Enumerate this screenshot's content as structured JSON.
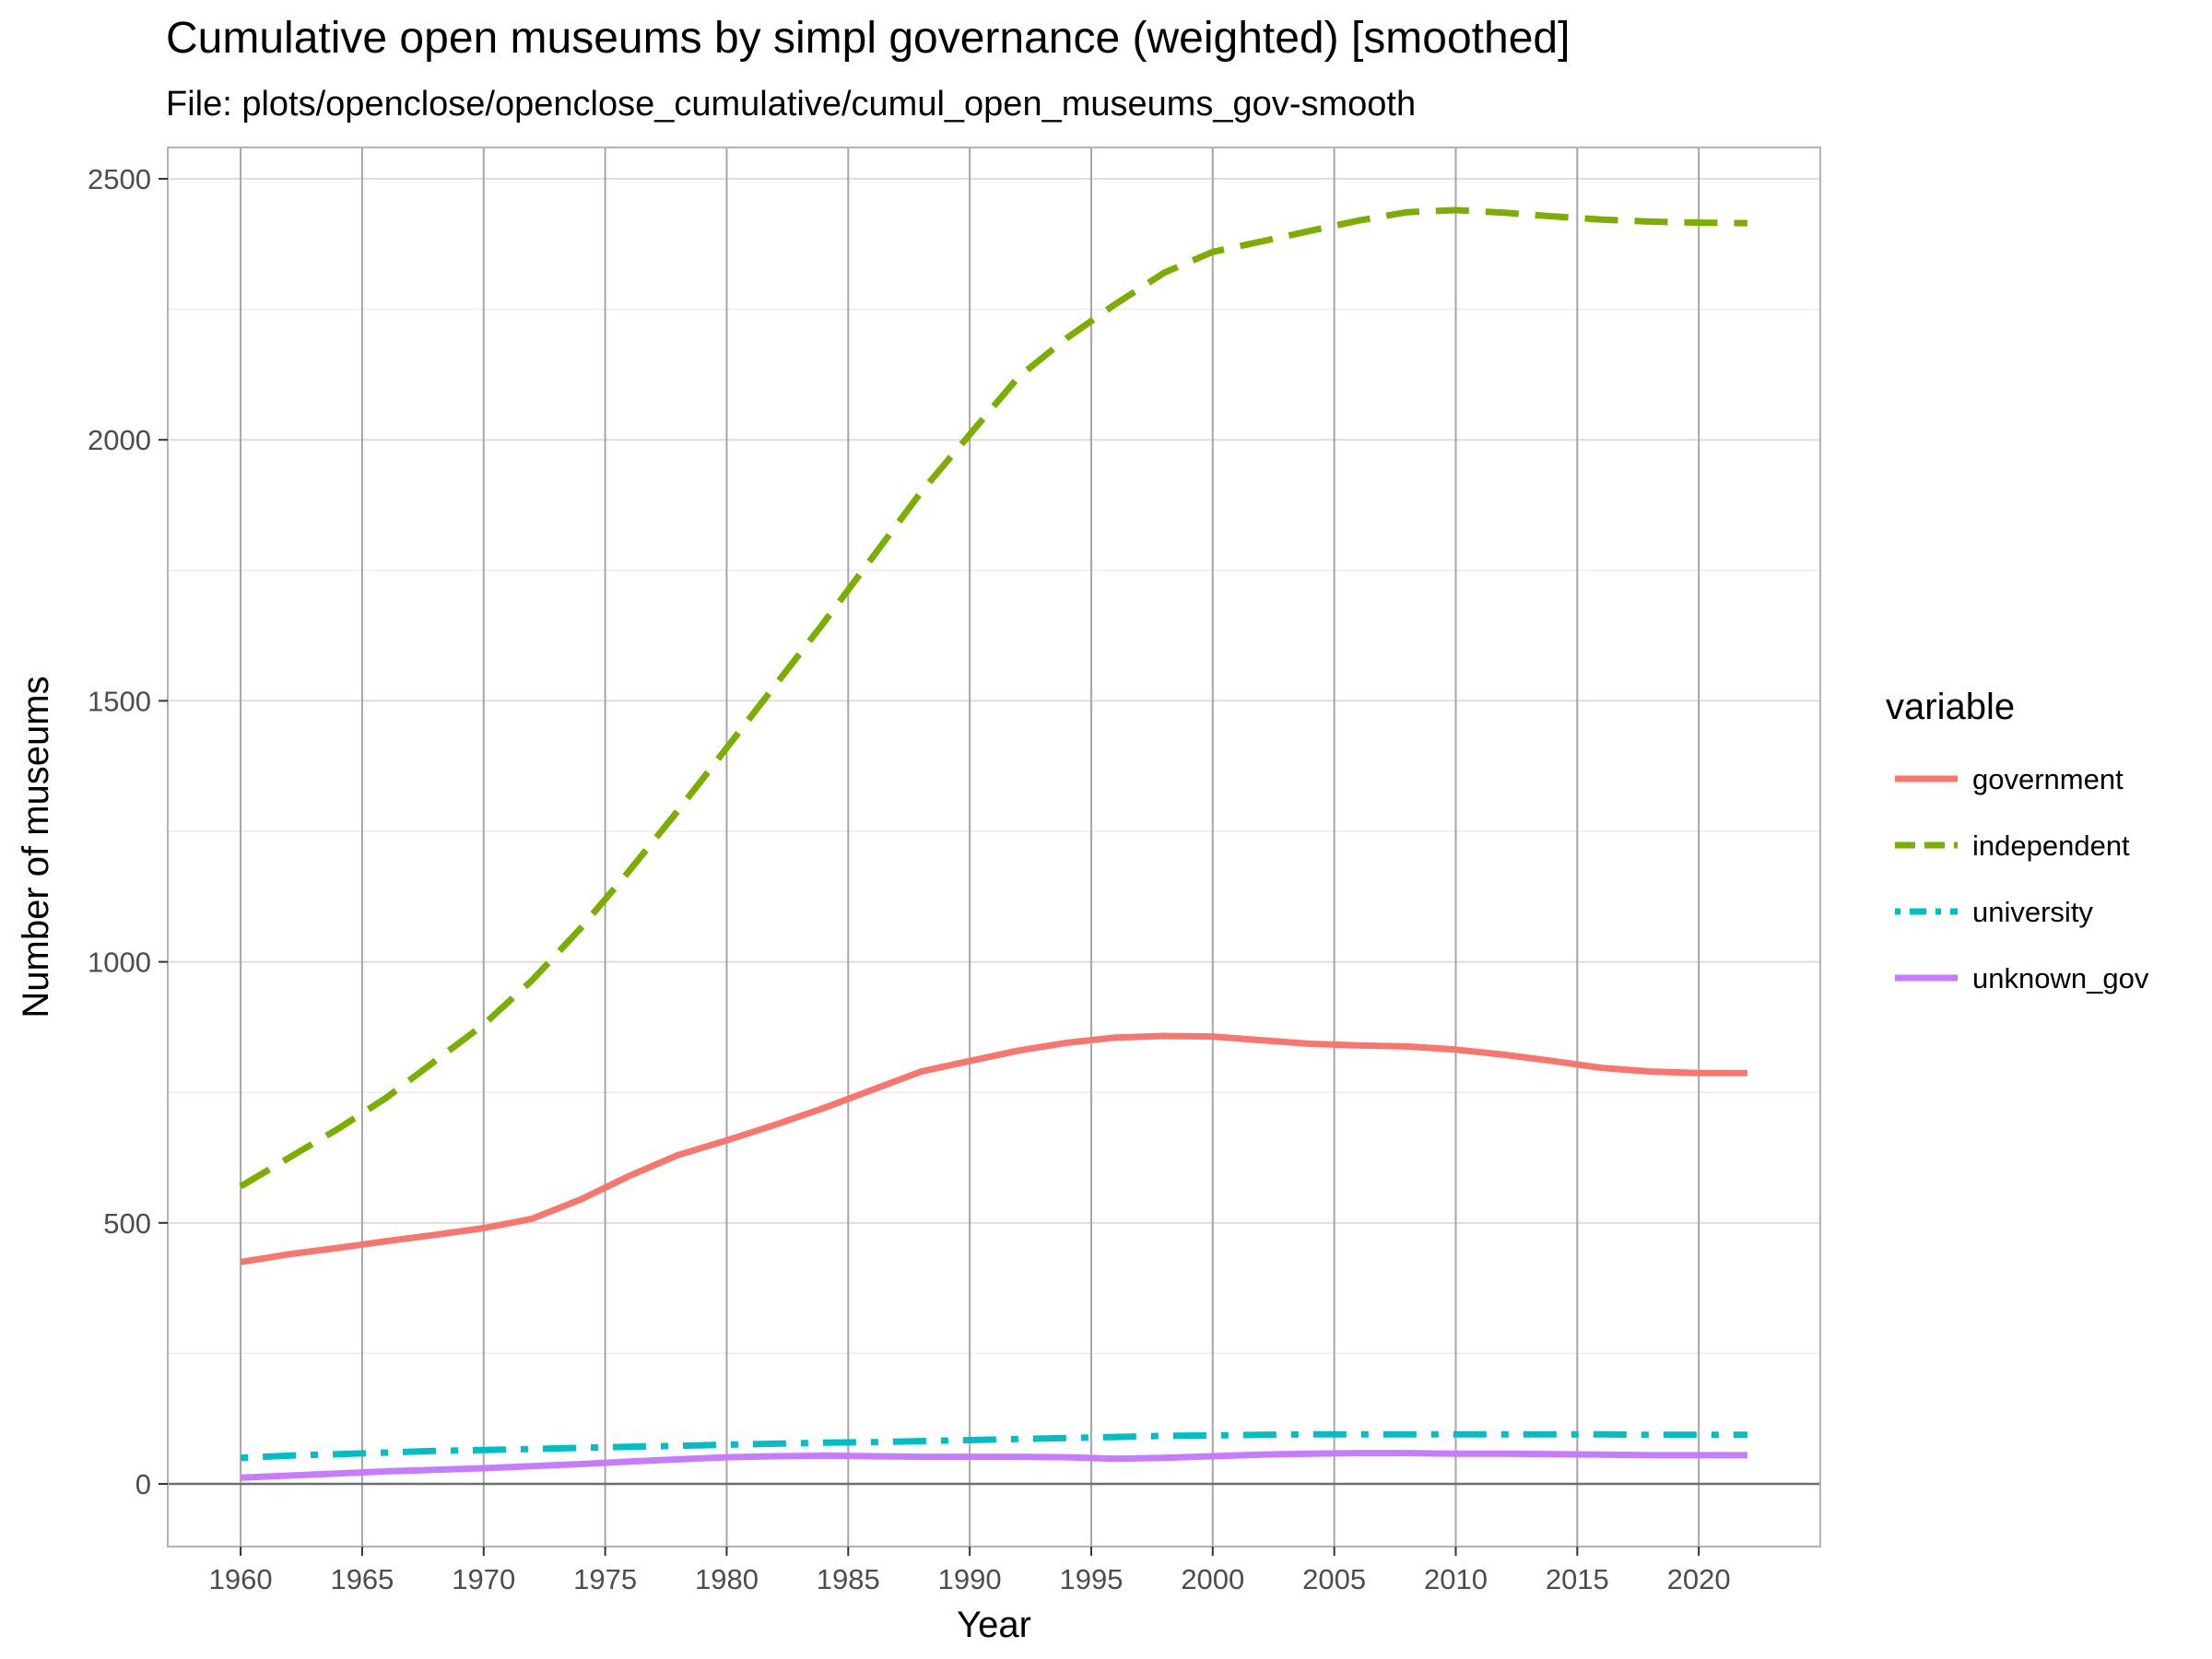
{
  "chart_data": {
    "type": "line",
    "title": "Cumulative open museums by simpl governance (weighted) [smoothed]",
    "subtitle": "File: plots/openclose/openclose_cumulative/cumul_open_museums_gov-smooth",
    "xlabel": "Year",
    "ylabel": "Number of museums",
    "xlim": [
      1957,
      2025
    ],
    "ylim": [
      -120,
      2560
    ],
    "x_ticks": [
      1960,
      1965,
      1970,
      1975,
      1980,
      1985,
      1990,
      1995,
      2000,
      2005,
      2010,
      2015,
      2020
    ],
    "y_ticks": [
      0,
      500,
      1000,
      1500,
      2000,
      2500
    ],
    "grid": true,
    "legend": {
      "title": "variable",
      "position": "right"
    },
    "x": [
      1960,
      1962,
      1964,
      1966,
      1968,
      1970,
      1972,
      1974,
      1976,
      1978,
      1980,
      1982,
      1984,
      1986,
      1988,
      1990,
      1992,
      1994,
      1996,
      1998,
      2000,
      2002,
      2004,
      2006,
      2008,
      2010,
      2012,
      2014,
      2016,
      2018,
      2020,
      2022
    ],
    "series": [
      {
        "name": "government",
        "color": "#F8766D",
        "dash": "solid",
        "values": [
          425,
          440,
          452,
          465,
          477,
          490,
          508,
          545,
          590,
          630,
          658,
          688,
          720,
          755,
          790,
          810,
          830,
          845,
          855,
          858,
          857,
          850,
          843,
          840,
          838,
          832,
          822,
          810,
          797,
          790,
          787,
          787
        ]
      },
      {
        "name": "independent",
        "color": "#7CAE00",
        "dash": "dashed",
        "values": [
          570,
          625,
          680,
          740,
          810,
          880,
          965,
          1065,
          1175,
          1290,
          1410,
          1530,
          1650,
          1775,
          1900,
          2010,
          2120,
          2195,
          2260,
          2320,
          2360,
          2380,
          2400,
          2420,
          2436,
          2440,
          2435,
          2428,
          2422,
          2418,
          2416,
          2415
        ]
      },
      {
        "name": "university",
        "color": "#00BFC4",
        "dash": "dotdash",
        "values": [
          50,
          54,
          57,
          60,
          63,
          65,
          67,
          69,
          71,
          73,
          75,
          77,
          79,
          80,
          82,
          84,
          86,
          88,
          90,
          92,
          93,
          94,
          95,
          95,
          95,
          95,
          95,
          95,
          95,
          94,
          94,
          94
        ]
      },
      {
        "name": "unknown_gov",
        "color": "#C77CFF",
        "dash": "solid",
        "values": [
          12,
          16,
          20,
          24,
          27,
          30,
          34,
          38,
          43,
          47,
          51,
          53,
          54,
          53,
          52,
          52,
          52,
          51,
          48,
          50,
          53,
          56,
          58,
          59,
          59,
          58,
          58,
          57,
          56,
          55,
          55,
          55
        ]
      }
    ]
  }
}
